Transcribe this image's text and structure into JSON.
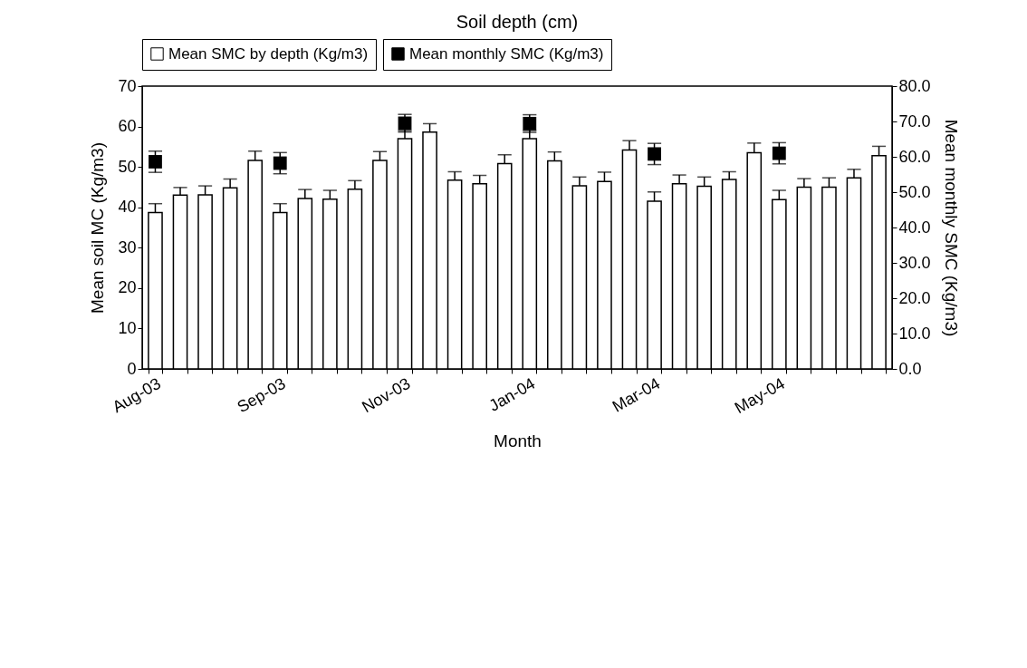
{
  "chart_data": {
    "type": "bar",
    "title": "Soil depth (cm)",
    "xlabel": "Month",
    "ylabel": "Mean soil MC (Kg/m3)",
    "y2label": "Mean monthly SMC (Kg/m3)",
    "categories": [
      "Aug-03",
      null,
      null,
      null,
      null,
      "Sep-03",
      null,
      null,
      null,
      null,
      "Nov-03",
      null,
      null,
      null,
      null,
      "Jan-04",
      null,
      null,
      null,
      null,
      "Mar-04",
      null,
      null,
      null,
      null,
      "May-04",
      null,
      null,
      null,
      null
    ],
    "series": [
      {
        "name": "Mean SMC by depth (Kg/m3)",
        "color": "#ffffff",
        "values": [
          38.7,
          43.0,
          43.1,
          44.8,
          51.6,
          38.7,
          42.2,
          42.0,
          44.5,
          51.6,
          57,
          58.6,
          46.7,
          45.8,
          50.8,
          57,
          51.5,
          45.3,
          46.4,
          54.2,
          41.5,
          45.8,
          45.2,
          46.9,
          53.5,
          41.9,
          45.0,
          45.0,
          47.3,
          52.8
        ],
        "errors": [
          [
            38.7,
            40.9
          ],
          [
            43.0,
            44.9
          ],
          [
            43.1,
            45.3
          ],
          [
            44.8,
            47.0
          ],
          [
            51.6,
            53.9
          ],
          [
            38.7,
            40.9
          ],
          [
            42.2,
            44.4
          ],
          [
            42.0,
            44.2
          ],
          [
            44.5,
            46.6
          ],
          [
            51.6,
            53.8
          ],
          [
            57,
            59
          ],
          [
            58.6,
            60.7
          ],
          [
            46.7,
            48.8
          ],
          [
            45.8,
            47.9
          ],
          [
            50.8,
            53.0
          ],
          [
            57,
            59
          ],
          [
            51.5,
            53.7
          ],
          [
            45.3,
            47.5
          ],
          [
            46.4,
            48.7
          ],
          [
            54.2,
            56.5
          ],
          [
            41.5,
            43.8
          ],
          [
            45.8,
            48.0
          ],
          [
            45.2,
            47.5
          ],
          [
            46.9,
            48.8
          ],
          [
            53.5,
            55.9
          ],
          [
            41.9,
            44.2
          ],
          [
            45.0,
            47.1
          ],
          [
            45.0,
            47.3
          ],
          [
            47.3,
            49.4
          ],
          [
            52.8,
            55.1
          ]
        ]
      },
      {
        "name": "Mean monthly SMC (Kg/m3)",
        "type": "line",
        "axis": "y2",
        "color": "#000000",
        "marker": "square",
        "line_style": "solid",
        "values": [
          58.6,
          null,
          null,
          null,
          null,
          58.2,
          null,
          null,
          null,
          null,
          69.5,
          null,
          null,
          null,
          null,
          69.4,
          null,
          null,
          null,
          null,
          60.8,
          null,
          null,
          null,
          null,
          61.0,
          null,
          null,
          null,
          null
        ],
        "errors": [
          3,
          null,
          null,
          null,
          null,
          3,
          null,
          null,
          null,
          null,
          2.5,
          null,
          null,
          null,
          null,
          2.5,
          null,
          null,
          null,
          null,
          3,
          null,
          null,
          null,
          null,
          3,
          null,
          null,
          null,
          null
        ]
      }
    ],
    "ylim": [
      0,
      70
    ],
    "yticks": [
      0,
      10,
      20,
      30,
      40,
      50,
      60,
      70
    ],
    "y2lim": [
      0,
      80
    ],
    "y2ticks": [
      {
        "value": 0,
        "label": "0.0"
      },
      {
        "value": 10,
        "label": "10.0"
      },
      {
        "value": 20,
        "label": "20.0"
      },
      {
        "value": 30,
        "label": "30.0"
      },
      {
        "value": 40,
        "label": "40.0"
      },
      {
        "value": 50,
        "label": "50.0"
      },
      {
        "value": 60,
        "label": "60.0"
      },
      {
        "value": 70,
        "label": "70.0"
      },
      {
        "value": 80,
        "label": "80.0"
      }
    ],
    "grid": false,
    "legend": "top"
  }
}
